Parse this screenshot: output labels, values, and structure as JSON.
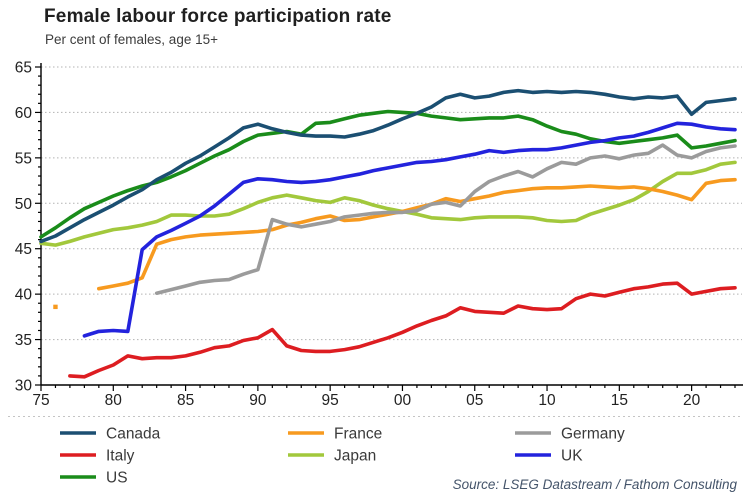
{
  "header": {
    "title": "Female labour force participation rate",
    "subtitle": "Per cent of females, age 15+"
  },
  "source": "Source: LSEG Datastream / Fathom Consulting",
  "colors": {
    "axis": "#000000",
    "grid": "#b3b3b3",
    "tick_label": "#222222",
    "legend_text": "#3a3a3a",
    "source_text": "#44546A"
  },
  "legend": {
    "columns": [
      [
        "Canada",
        "Italy",
        "US"
      ],
      [
        "France",
        "Japan"
      ],
      [
        "Germany",
        "UK"
      ]
    ]
  },
  "chart_data": {
    "type": "line",
    "title": "Female labour force participation rate",
    "subtitle": "Per cent of females, age 15+",
    "xlabel": "",
    "ylabel": "Per cent of females, age 15+",
    "grid": "horizontal-dotted",
    "legend_position": "bottom",
    "x_start": 1975,
    "x_end": 2023,
    "ylim": [
      30,
      65
    ],
    "y_tick_major": 5,
    "y_tick_minor": 1,
    "x_tick_years": [
      1975,
      1980,
      1985,
      1990,
      1995,
      2000,
      2005,
      2010,
      2015,
      2020
    ],
    "x_tick_labels": [
      "75",
      "80",
      "85",
      "90",
      "95",
      "00",
      "05",
      "10",
      "15",
      "20"
    ],
    "years": [
      1975,
      1976,
      1977,
      1978,
      1979,
      1980,
      1981,
      1982,
      1983,
      1984,
      1985,
      1986,
      1987,
      1988,
      1989,
      1990,
      1991,
      1992,
      1993,
      1994,
      1995,
      1996,
      1997,
      1998,
      1999,
      2000,
      2001,
      2002,
      2003,
      2004,
      2005,
      2006,
      2007,
      2008,
      2009,
      2010,
      2011,
      2012,
      2013,
      2014,
      2015,
      2016,
      2017,
      2018,
      2019,
      2020,
      2021,
      2022,
      2023
    ],
    "series": [
      {
        "name": "Japan",
        "color": "#a2c83c",
        "values": [
          45.6,
          45.4,
          45.8,
          46.3,
          46.7,
          47.1,
          47.3,
          47.6,
          48.0,
          48.7,
          48.7,
          48.6,
          48.6,
          48.8,
          49.4,
          50.1,
          50.6,
          50.9,
          50.6,
          50.3,
          50.1,
          50.6,
          50.3,
          49.8,
          49.4,
          49.1,
          48.8,
          48.4,
          48.3,
          48.2,
          48.4,
          48.5,
          48.5,
          48.5,
          48.4,
          48.1,
          48.0,
          48.1,
          48.8,
          49.3,
          49.8,
          50.4,
          51.3,
          52.4,
          53.3,
          53.3,
          53.7,
          54.3,
          54.5
        ]
      },
      {
        "name": "France",
        "color": "#f79a1f",
        "values": [
          null,
          38.6,
          null,
          null,
          40.6,
          40.9,
          41.2,
          41.8,
          45.5,
          46.0,
          46.3,
          46.5,
          46.6,
          46.7,
          46.8,
          46.9,
          47.1,
          47.6,
          47.9,
          48.3,
          48.6,
          48.1,
          48.2,
          48.5,
          48.8,
          49.1,
          49.5,
          49.9,
          50.5,
          50.2,
          50.5,
          50.8,
          51.2,
          51.4,
          51.6,
          51.7,
          51.7,
          51.8,
          51.9,
          51.8,
          51.7,
          51.8,
          51.6,
          51.3,
          50.9,
          50.4,
          52.2,
          52.5,
          52.6
        ]
      },
      {
        "name": "Germany",
        "color": "#9b9b9b",
        "values": [
          null,
          null,
          null,
          null,
          null,
          null,
          null,
          null,
          40.1,
          40.5,
          40.9,
          41.3,
          41.5,
          41.6,
          42.2,
          42.7,
          48.2,
          47.7,
          47.4,
          47.7,
          48.0,
          48.5,
          48.7,
          48.9,
          49.0,
          49.0,
          49.2,
          49.9,
          50.1,
          49.7,
          51.3,
          52.4,
          53.0,
          53.5,
          52.9,
          53.8,
          54.5,
          54.3,
          55.0,
          55.2,
          54.9,
          55.3,
          55.5,
          56.4,
          55.3,
          55.0,
          55.7,
          56.1,
          56.3
        ]
      },
      {
        "name": "Italy",
        "color": "#dd1d21",
        "values": [
          null,
          null,
          31.0,
          30.9,
          31.6,
          32.2,
          33.2,
          32.9,
          33.0,
          33.0,
          33.2,
          33.6,
          34.1,
          34.3,
          34.9,
          35.2,
          36.1,
          34.3,
          33.8,
          33.7,
          33.7,
          33.9,
          34.2,
          34.7,
          35.2,
          35.8,
          36.5,
          37.1,
          37.6,
          38.5,
          38.1,
          38.0,
          37.9,
          38.7,
          38.4,
          38.3,
          38.4,
          39.5,
          40.0,
          39.8,
          40.2,
          40.6,
          40.8,
          41.1,
          41.2,
          40.0,
          40.3,
          40.6,
          40.7
        ]
      },
      {
        "name": "US",
        "color": "#1a8c1a",
        "values": [
          46.3,
          47.3,
          48.4,
          49.4,
          50.1,
          50.8,
          51.4,
          51.9,
          52.3,
          52.9,
          53.6,
          54.4,
          55.2,
          55.9,
          56.8,
          57.5,
          57.7,
          57.9,
          57.6,
          58.8,
          58.9,
          59.3,
          59.7,
          59.9,
          60.1,
          60.0,
          59.9,
          59.6,
          59.4,
          59.2,
          59.3,
          59.4,
          59.4,
          59.6,
          59.2,
          58.5,
          57.9,
          57.6,
          57.1,
          56.8,
          56.6,
          56.8,
          57.0,
          57.2,
          57.5,
          56.1,
          56.3,
          56.6,
          56.9
        ]
      },
      {
        "name": "Canada",
        "color": "#1b4f72",
        "values": [
          45.8,
          46.4,
          47.3,
          48.2,
          49.0,
          49.8,
          50.7,
          51.5,
          52.6,
          53.4,
          54.4,
          55.2,
          56.2,
          57.2,
          58.3,
          58.7,
          58.2,
          57.8,
          57.5,
          57.4,
          57.4,
          57.3,
          57.6,
          58.0,
          58.6,
          59.3,
          59.9,
          60.6,
          61.6,
          62.0,
          61.6,
          61.8,
          62.2,
          62.4,
          62.2,
          62.3,
          62.2,
          62.3,
          62.2,
          62.0,
          61.7,
          61.5,
          61.7,
          61.6,
          61.8,
          59.8,
          61.1,
          61.3,
          61.5
        ]
      },
      {
        "name": "UK",
        "color": "#2323dd",
        "values": [
          null,
          null,
          null,
          35.4,
          35.9,
          36.0,
          35.9,
          44.9,
          46.3,
          47.0,
          47.8,
          48.6,
          49.7,
          51.0,
          52.3,
          52.7,
          52.6,
          52.4,
          52.3,
          52.4,
          52.6,
          52.9,
          53.2,
          53.6,
          53.9,
          54.2,
          54.5,
          54.6,
          54.8,
          55.1,
          55.4,
          55.8,
          55.6,
          55.8,
          55.9,
          55.9,
          56.1,
          56.4,
          56.7,
          56.9,
          57.2,
          57.4,
          57.8,
          58.3,
          58.8,
          58.7,
          58.4,
          58.2,
          58.1
        ]
      }
    ]
  }
}
